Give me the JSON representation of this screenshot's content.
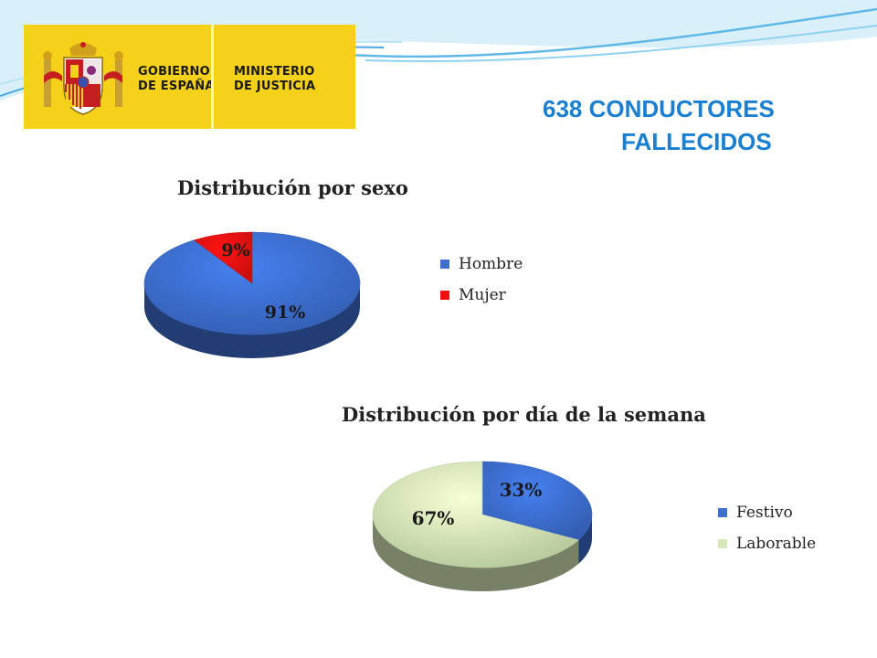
{
  "logo": {
    "left_lines": [
      "GOBIERNO",
      "DE ESPAÑA"
    ],
    "right_lines": [
      "MINISTERIO",
      "DE JUSTICIA"
    ],
    "bg_color": "#f5d11a"
  },
  "headline": {
    "lines": [
      "638 CONDUCTORES",
      "FALLECIDOS"
    ],
    "color": "#1a7fd0"
  },
  "chart_data": [
    {
      "type": "pie",
      "title": "Distribución por sexo",
      "categories": [
        "Hombre",
        "Mujer"
      ],
      "values": [
        91,
        9
      ],
      "data_labels": [
        "91%",
        "9%"
      ],
      "colors": [
        "#3d6fd1",
        "#ee1111"
      ],
      "legend_placement": "right"
    },
    {
      "type": "pie",
      "title": "Distribución por día de la semana",
      "categories": [
        "Festivo",
        "Laborable"
      ],
      "values": [
        33,
        67
      ],
      "data_labels": [
        "33%",
        "67%"
      ],
      "colors": [
        "#3d6fd1",
        "#d6ebb9"
      ],
      "legend_placement": "right"
    }
  ]
}
